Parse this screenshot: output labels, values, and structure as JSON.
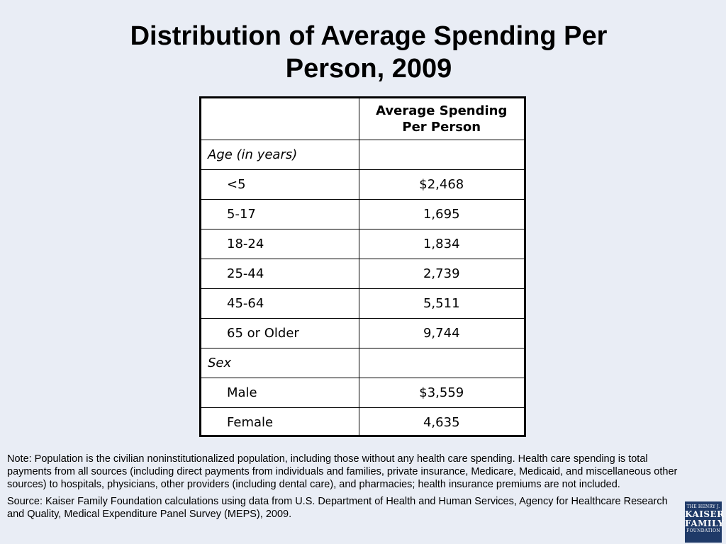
{
  "title_line1": "Distribution of Average Spending Per",
  "title_line2": "Person, 2009",
  "chart_data": {
    "type": "table",
    "columns": [
      "",
      "Average Spending Per Person"
    ],
    "header_line1": "Average Spending",
    "header_line2": "Per Person",
    "sections": [
      {
        "label": "Age (in years)",
        "rows": [
          {
            "label": "<5",
            "value": "$2,468"
          },
          {
            "label": "5-17",
            "value": "1,695"
          },
          {
            "label": "18-24",
            "value": "1,834"
          },
          {
            "label": "25-44",
            "value": "2,739"
          },
          {
            "label": "45-64",
            "value": "5,511"
          },
          {
            "label": "65 or Older",
            "value": "9,744"
          }
        ]
      },
      {
        "label": "Sex",
        "rows": [
          {
            "label": "Male",
            "value": "$3,559"
          },
          {
            "label": "Female",
            "value": "4,635"
          }
        ]
      }
    ]
  },
  "note": "Note: Population is the civilian noninstitutionalized population, including those without any health care spending. Health care spending is total payments from all sources (including direct payments from individuals and families, private insurance, Medicare, Medicaid, and miscellaneous other sources) to hospitals, physicians, other providers (including dental care), and pharmacies; health insurance premiums are not included.",
  "source": "Source: Kaiser Family Foundation calculations using data from U.S. Department of Health and Human Services, Agency for Healthcare Research and Quality, Medical Expenditure Panel Survey (MEPS), 2009.",
  "logo": {
    "line1": "THE HENRY J.",
    "line2": "KAISER",
    "line3": "FAMILY",
    "line4": "FOUNDATION"
  },
  "colors": {
    "background": "#e9edf5",
    "logo": "#1f3a68"
  }
}
